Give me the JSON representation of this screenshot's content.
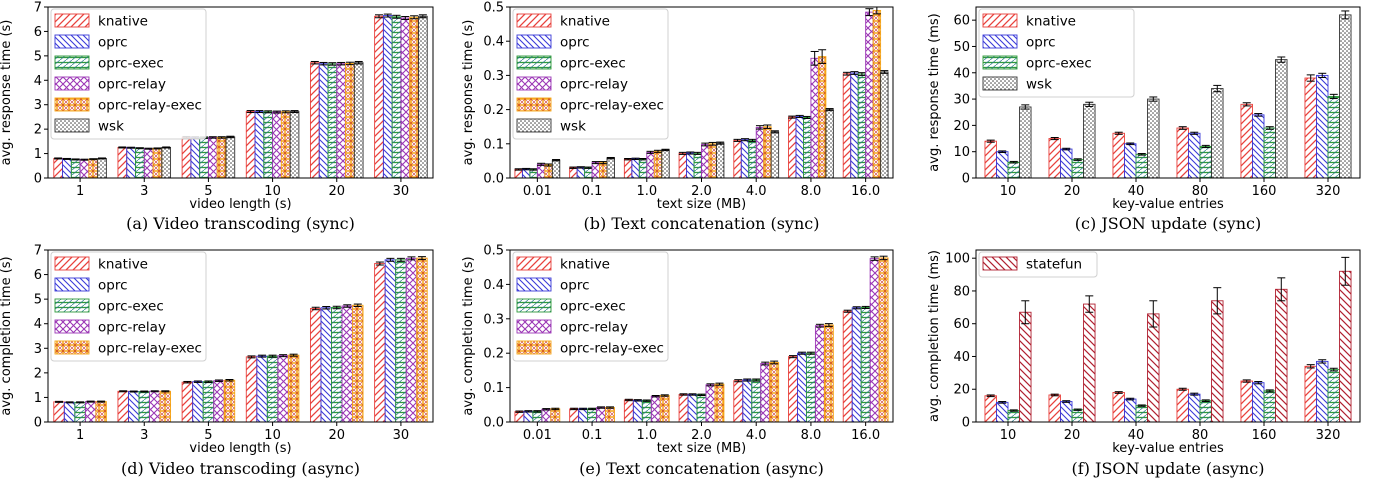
{
  "colors": {
    "knative": "#e8413c",
    "oprc": "#3a3ad8",
    "oprc-exec": "#2e9a3a",
    "oprc-relay": "#9b36b5",
    "oprc-relay-exec": "#f5a516",
    "wsk": "#333333",
    "statefun": "#b02030"
  },
  "chart_data": [
    {
      "type": "bar",
      "caption": "(a) Video transcoding (sync)",
      "xlabel": "video length (s)",
      "ylabel": "avg. response time (s)",
      "ylim": [
        0,
        7
      ],
      "yticks": [
        0,
        1,
        2,
        3,
        4,
        5,
        6,
        7
      ],
      "categories": [
        "1",
        "3",
        "5",
        "10",
        "20",
        "30"
      ],
      "legend_position": "top-left",
      "series": [
        {
          "name": "knative",
          "key": "knative",
          "values": [
            0.8,
            1.25,
            1.67,
            2.72,
            4.72,
            6.62
          ],
          "err": [
            0.02,
            0.02,
            0.03,
            0.04,
            0.05,
            0.06
          ]
        },
        {
          "name": "oprc",
          "key": "oprc",
          "values": [
            0.78,
            1.24,
            1.66,
            2.72,
            4.68,
            6.65
          ],
          "err": [
            0.02,
            0.02,
            0.03,
            0.04,
            0.05,
            0.06
          ]
        },
        {
          "name": "oprc-exec",
          "key": "oprc-exec",
          "values": [
            0.76,
            1.22,
            1.65,
            2.71,
            4.67,
            6.6
          ],
          "err": [
            0.02,
            0.02,
            0.03,
            0.04,
            0.05,
            0.06
          ]
        },
        {
          "name": "oprc-relay",
          "key": "oprc-relay",
          "values": [
            0.75,
            1.2,
            1.66,
            2.7,
            4.68,
            6.55
          ],
          "err": [
            0.02,
            0.02,
            0.03,
            0.04,
            0.05,
            0.06
          ]
        },
        {
          "name": "oprc-relay-exec",
          "key": "oprc-relay-exec",
          "values": [
            0.77,
            1.21,
            1.66,
            2.71,
            4.69,
            6.58
          ],
          "err": [
            0.02,
            0.02,
            0.03,
            0.04,
            0.05,
            0.06
          ]
        },
        {
          "name": "wsk",
          "key": "wsk",
          "values": [
            0.8,
            1.25,
            1.68,
            2.72,
            4.72,
            6.62
          ],
          "err": [
            0.02,
            0.02,
            0.03,
            0.04,
            0.05,
            0.06
          ]
        }
      ]
    },
    {
      "type": "bar",
      "caption": "(b) Text concatenation (sync)",
      "xlabel": "text size (MB)",
      "ylabel": "avg. response time (s)",
      "ylim": [
        0,
        0.5
      ],
      "yticks": [
        0.0,
        0.1,
        0.2,
        0.3,
        0.4,
        0.5
      ],
      "ytick_labels": [
        "0.0",
        "0.1",
        "0.2",
        "0.3",
        "0.4",
        "0.5"
      ],
      "categories": [
        "0.01",
        "0.1",
        "1.0",
        "2.0",
        "4.0",
        "8.0",
        "16.0"
      ],
      "legend_position": "top-left",
      "series": [
        {
          "name": "knative",
          "key": "knative",
          "values": [
            0.025,
            0.03,
            0.055,
            0.072,
            0.11,
            0.178,
            0.305
          ],
          "err": [
            0.002,
            0.002,
            0.002,
            0.003,
            0.003,
            0.003,
            0.004
          ]
        },
        {
          "name": "oprc",
          "key": "oprc",
          "values": [
            0.026,
            0.031,
            0.056,
            0.073,
            0.112,
            0.18,
            0.307
          ],
          "err": [
            0.002,
            0.002,
            0.002,
            0.003,
            0.003,
            0.003,
            0.004
          ]
        },
        {
          "name": "oprc-exec",
          "key": "oprc-exec",
          "values": [
            0.025,
            0.03,
            0.055,
            0.072,
            0.11,
            0.177,
            0.304
          ],
          "err": [
            0.002,
            0.002,
            0.002,
            0.003,
            0.003,
            0.003,
            0.004
          ]
        },
        {
          "name": "oprc-relay",
          "key": "oprc-relay",
          "values": [
            0.04,
            0.045,
            0.075,
            0.098,
            0.148,
            0.35,
            0.485
          ],
          "err": [
            0.003,
            0.003,
            0.003,
            0.004,
            0.005,
            0.02,
            0.01
          ]
        },
        {
          "name": "oprc-relay-exec",
          "key": "oprc-relay-exec",
          "values": [
            0.038,
            0.045,
            0.078,
            0.1,
            0.15,
            0.355,
            0.49
          ],
          "err": [
            0.003,
            0.003,
            0.003,
            0.004,
            0.005,
            0.02,
            0.01
          ]
        },
        {
          "name": "wsk",
          "key": "wsk",
          "values": [
            0.052,
            0.058,
            0.082,
            0.102,
            0.135,
            0.2,
            0.31
          ],
          "err": [
            0.002,
            0.002,
            0.002,
            0.003,
            0.003,
            0.003,
            0.004
          ]
        }
      ]
    },
    {
      "type": "bar",
      "caption": "(c) JSON update (sync)",
      "xlabel": "key-value entries",
      "ylabel": "avg. response time (ms)",
      "ylim": [
        0,
        65
      ],
      "yticks": [
        0,
        10,
        20,
        30,
        40,
        50,
        60
      ],
      "categories": [
        "10",
        "20",
        "40",
        "80",
        "160",
        "320"
      ],
      "group_width": 0.72,
      "legend_position": "top-left",
      "series": [
        {
          "name": "knative",
          "key": "knative",
          "values": [
            14,
            15,
            17,
            19,
            28,
            38
          ],
          "err": [
            0.4,
            0.4,
            0.4,
            0.5,
            0.6,
            1.2
          ]
        },
        {
          "name": "oprc",
          "key": "oprc",
          "values": [
            10,
            11,
            13,
            17,
            24,
            39
          ],
          "err": [
            0.3,
            0.3,
            0.3,
            0.4,
            0.5,
            0.8
          ]
        },
        {
          "name": "oprc-exec",
          "key": "oprc-exec",
          "values": [
            6,
            7,
            9,
            12,
            19,
            31
          ],
          "err": [
            0.3,
            0.3,
            0.3,
            0.4,
            0.5,
            0.8
          ]
        },
        {
          "name": "wsk",
          "key": "wsk",
          "values": [
            27,
            28,
            30,
            34,
            45,
            62
          ],
          "err": [
            0.8,
            0.8,
            0.8,
            1.2,
            1.0,
            1.5
          ]
        }
      ]
    },
    {
      "type": "bar",
      "caption": "(d) Video transcoding (async)",
      "xlabel": "video length (s)",
      "ylabel": "avg. completion time (s)",
      "ylim": [
        0,
        7
      ],
      "yticks": [
        0,
        1,
        2,
        3,
        4,
        5,
        6,
        7
      ],
      "categories": [
        "1",
        "3",
        "5",
        "10",
        "20",
        "30"
      ],
      "legend_position": "top-left",
      "series": [
        {
          "name": "knative",
          "key": "knative",
          "values": [
            0.82,
            1.25,
            1.62,
            2.65,
            4.62,
            6.45
          ],
          "err": [
            0.02,
            0.02,
            0.03,
            0.04,
            0.05,
            0.06
          ]
        },
        {
          "name": "oprc",
          "key": "oprc",
          "values": [
            0.8,
            1.24,
            1.64,
            2.68,
            4.65,
            6.6
          ],
          "err": [
            0.02,
            0.02,
            0.03,
            0.04,
            0.05,
            0.06
          ]
        },
        {
          "name": "oprc-exec",
          "key": "oprc-exec",
          "values": [
            0.8,
            1.24,
            1.64,
            2.68,
            4.66,
            6.6
          ],
          "err": [
            0.02,
            0.02,
            0.03,
            0.04,
            0.05,
            0.06
          ]
        },
        {
          "name": "oprc-relay",
          "key": "oprc-relay",
          "values": [
            0.83,
            1.25,
            1.68,
            2.7,
            4.72,
            6.66
          ],
          "err": [
            0.02,
            0.02,
            0.03,
            0.04,
            0.05,
            0.06
          ]
        },
        {
          "name": "oprc-relay-exec",
          "key": "oprc-relay-exec",
          "values": [
            0.83,
            1.25,
            1.7,
            2.72,
            4.75,
            6.67
          ],
          "err": [
            0.02,
            0.02,
            0.03,
            0.04,
            0.05,
            0.06
          ]
        }
      ]
    },
    {
      "type": "bar",
      "caption": "(e) Text concatenation (async)",
      "xlabel": "text size (MB)",
      "ylabel": "avg. completion time (s)",
      "ylim": [
        0,
        0.5
      ],
      "yticks": [
        0.0,
        0.1,
        0.2,
        0.3,
        0.4,
        0.5
      ],
      "ytick_labels": [
        "0.0",
        "0.1",
        "0.2",
        "0.3",
        "0.4",
        "0.5"
      ],
      "categories": [
        "0.01",
        "0.1",
        "1.0",
        "2.0",
        "4.0",
        "8.0",
        "16.0"
      ],
      "legend_position": "top-left",
      "series": [
        {
          "name": "knative",
          "key": "knative",
          "values": [
            0.03,
            0.038,
            0.064,
            0.08,
            0.12,
            0.19,
            0.322
          ],
          "err": [
            0.002,
            0.002,
            0.002,
            0.002,
            0.003,
            0.003,
            0.003
          ]
        },
        {
          "name": "oprc",
          "key": "oprc",
          "values": [
            0.031,
            0.038,
            0.063,
            0.08,
            0.122,
            0.2,
            0.332
          ],
          "err": [
            0.002,
            0.002,
            0.002,
            0.002,
            0.003,
            0.003,
            0.003
          ]
        },
        {
          "name": "oprc-exec",
          "key": "oprc-exec",
          "values": [
            0.031,
            0.038,
            0.062,
            0.079,
            0.122,
            0.2,
            0.333
          ],
          "err": [
            0.002,
            0.002,
            0.002,
            0.002,
            0.003,
            0.003,
            0.003
          ]
        },
        {
          "name": "oprc-relay",
          "key": "oprc-relay",
          "values": [
            0.037,
            0.042,
            0.075,
            0.108,
            0.17,
            0.28,
            0.475
          ],
          "err": [
            0.002,
            0.002,
            0.002,
            0.003,
            0.004,
            0.004,
            0.005
          ]
        },
        {
          "name": "oprc-relay-exec",
          "key": "oprc-relay-exec",
          "values": [
            0.038,
            0.042,
            0.077,
            0.11,
            0.173,
            0.282,
            0.477
          ],
          "err": [
            0.002,
            0.002,
            0.002,
            0.003,
            0.004,
            0.004,
            0.005
          ]
        }
      ]
    },
    {
      "type": "bar",
      "caption": "(f) JSON update (async)",
      "xlabel": "key-value entries",
      "ylabel": "avg. completion time (ms)",
      "ylim": [
        0,
        105
      ],
      "yticks": [
        0,
        20,
        40,
        60,
        80,
        100
      ],
      "categories": [
        "10",
        "20",
        "40",
        "80",
        "160",
        "320"
      ],
      "group_width": 0.72,
      "legend_position": "top-left",
      "legend_series": [
        "statefun"
      ],
      "series": [
        {
          "name": "knative",
          "key": "knative",
          "values": [
            16,
            16.5,
            18,
            20,
            25,
            34
          ],
          "err": [
            0.5,
            0.5,
            0.5,
            0.6,
            0.7,
            1.0
          ]
        },
        {
          "name": "oprc",
          "key": "oprc",
          "values": [
            12,
            12.5,
            14,
            17,
            24,
            37
          ],
          "err": [
            0.5,
            0.5,
            0.5,
            0.6,
            0.7,
            1.0
          ]
        },
        {
          "name": "oprc-exec",
          "key": "oprc-exec",
          "values": [
            7,
            7.5,
            10,
            13,
            19,
            32
          ],
          "err": [
            0.4,
            0.4,
            0.4,
            0.5,
            0.6,
            0.8
          ]
        },
        {
          "name": "statefun",
          "key": "statefun",
          "values": [
            67,
            72,
            66,
            74,
            81,
            92
          ],
          "err": [
            7,
            5,
            8,
            8,
            7,
            8.5
          ]
        }
      ]
    }
  ]
}
